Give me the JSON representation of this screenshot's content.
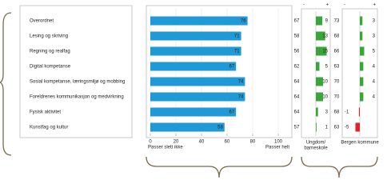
{
  "chart_data": [
    {
      "type": "hbar",
      "categories": [
        "Overordnet",
        "Lesing og skriving",
        "Regning og realfag",
        "Digital kompetanse",
        "Sosial kompetanse, læringsmiljø og mobbing",
        "Foreldrenes kommunikasjon og medvirkning",
        "Fysisk aktivitet",
        "Kunstfag og kultur"
      ],
      "values": [
        76,
        71,
        71,
        67,
        74,
        74,
        67,
        58
      ],
      "color": "#1f9ad6",
      "xlim": [
        0,
        100
      ],
      "xticks": [
        0,
        20,
        40,
        60,
        80,
        100
      ],
      "grid": true,
      "xlabel_left": "Passer slett ikke",
      "xlabel_right": "Passer helt"
    },
    {
      "type": "diverging",
      "title": [
        "Ungdom/",
        "barneskole"
      ],
      "axis_labels": [
        "-",
        "+"
      ],
      "reference_values": [
        67,
        58,
        56,
        62,
        64,
        64,
        64,
        57
      ],
      "values": [
        9,
        13,
        15,
        5,
        10,
        10,
        3,
        1
      ],
      "xlim": [
        -20,
        20
      ],
      "positive_color": "#3aa53a",
      "negative_color": "#d9262b"
    },
    {
      "type": "diverging",
      "title": [
        "Bergen kommune"
      ],
      "axis_labels": [
        "-",
        "+"
      ],
      "reference_values": [
        73,
        68,
        66,
        63,
        70,
        70,
        68,
        63
      ],
      "values": [
        3,
        3,
        5,
        4,
        4,
        4,
        -1,
        -5
      ],
      "xlim": [
        -20,
        20
      ],
      "positive_color": "#3aa53a",
      "negative_color": "#d9262b"
    }
  ]
}
